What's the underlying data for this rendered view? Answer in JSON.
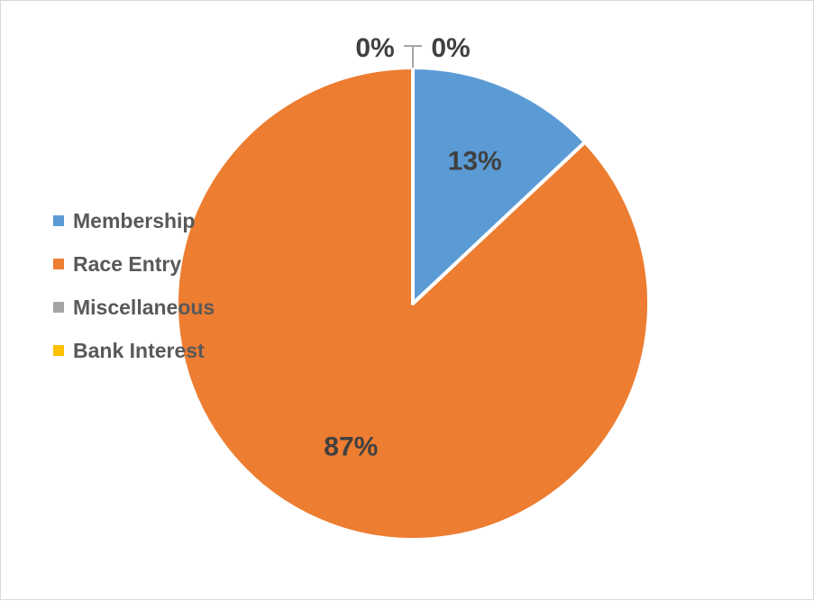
{
  "chart_data": {
    "type": "pie",
    "categories": [
      "Membership",
      "Race Entry",
      "Miscellaneous",
      "Bank Interest"
    ],
    "values": [
      13,
      87,
      0,
      0
    ],
    "data_labels": [
      "13%",
      "87%",
      "0%",
      "0%"
    ],
    "colors": [
      "#5b9bd5",
      "#ed7d31",
      "#a5a5a5",
      "#ffc000"
    ],
    "title": "",
    "legend_position": "left",
    "start_angle": "12 o'clock",
    "direction": "clockwise"
  }
}
